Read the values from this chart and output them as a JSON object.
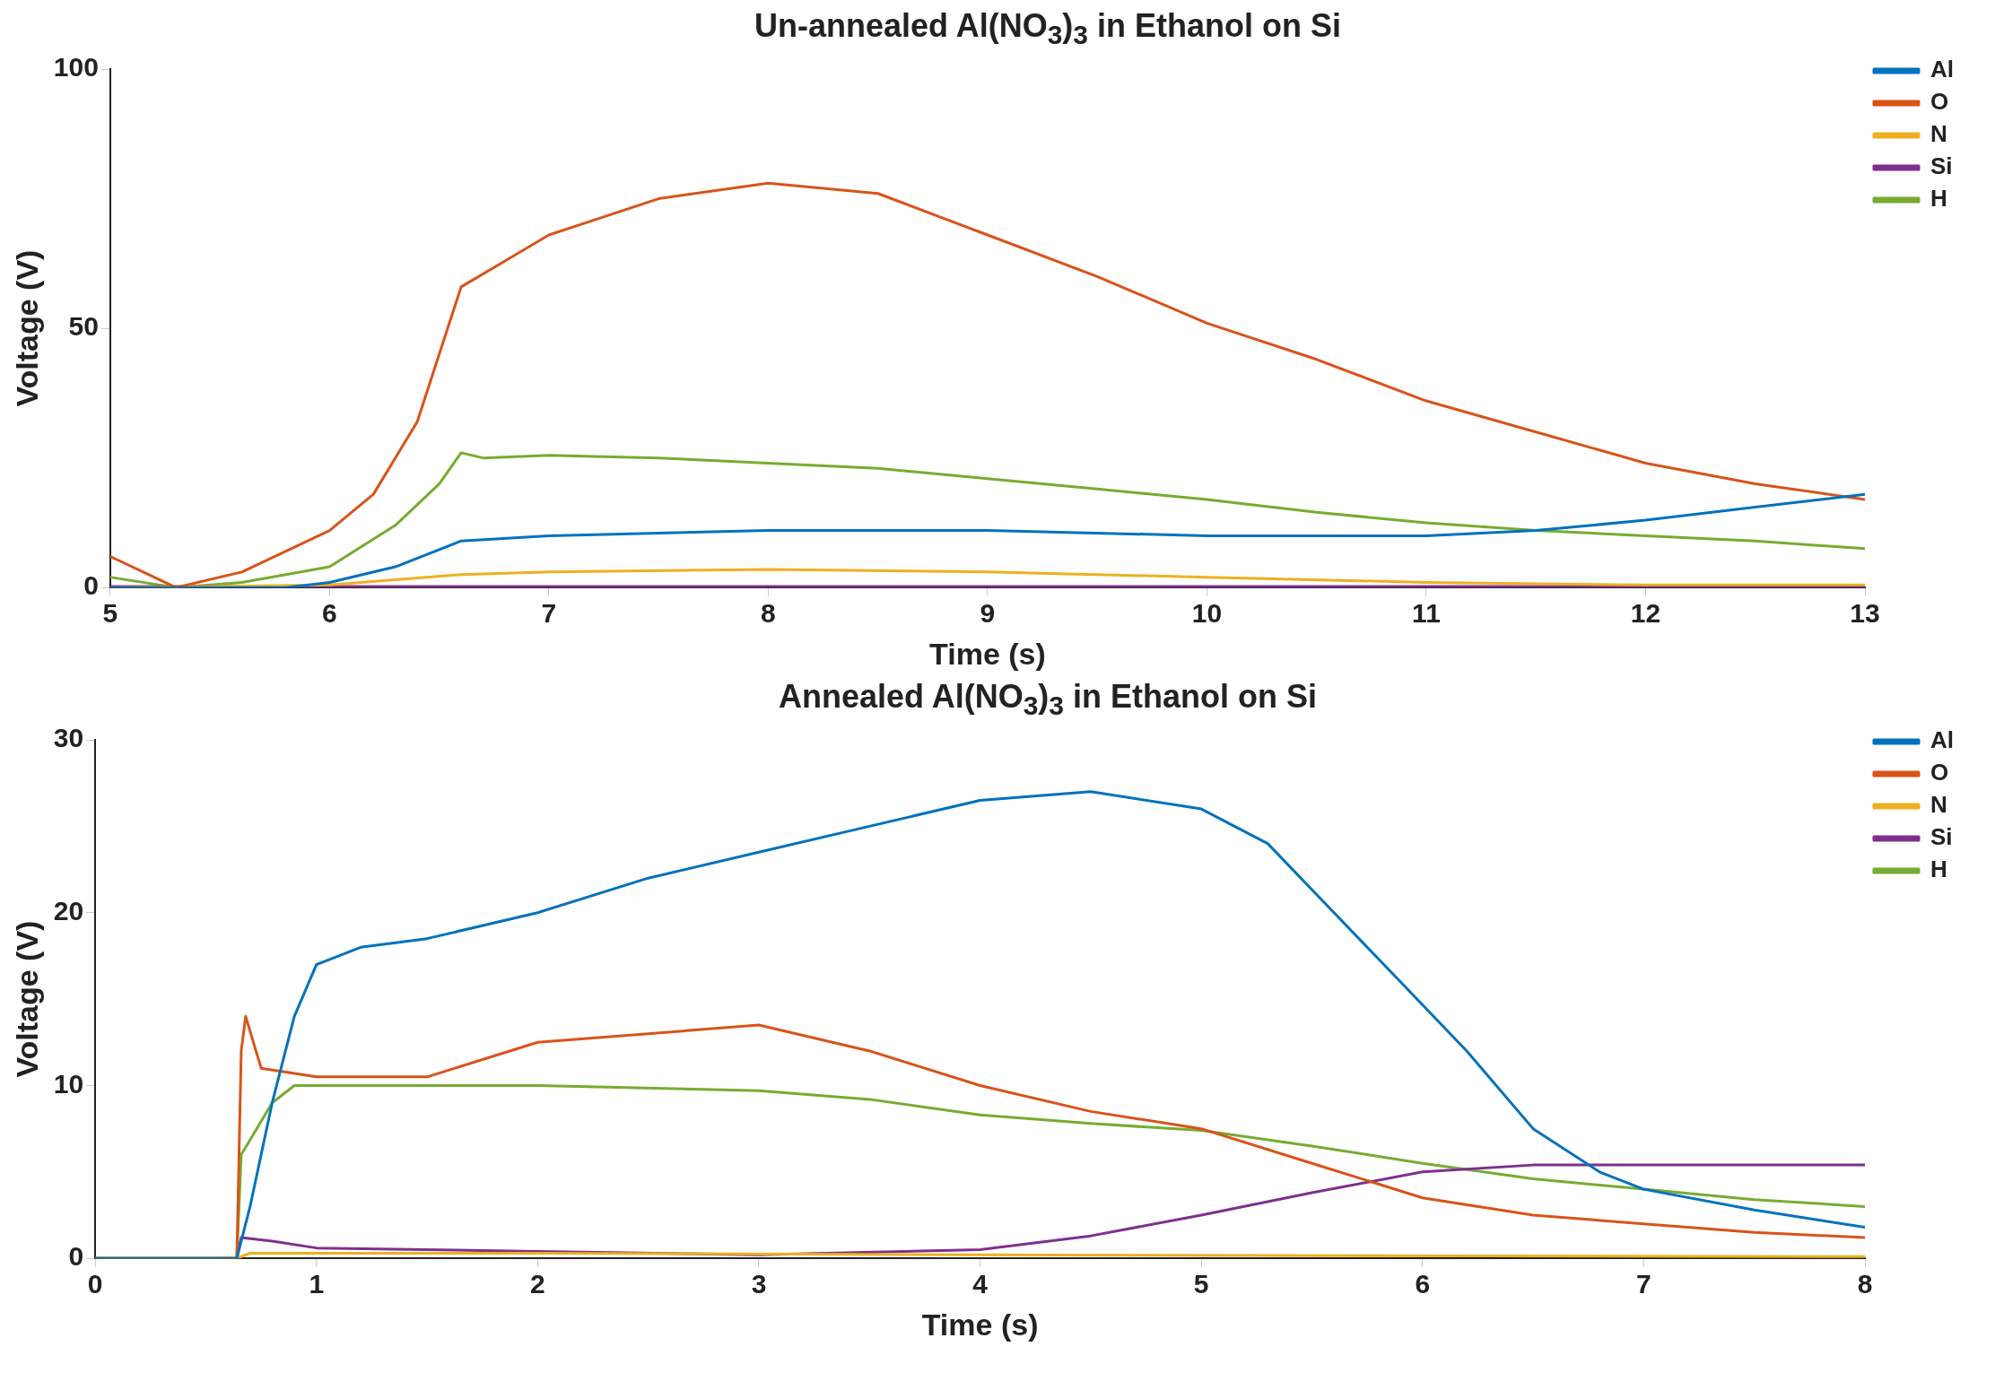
{
  "chart_data": [
    {
      "type": "line",
      "title": "Un-annealed Al(NO$_{3}$)$_{3}$ in Ethanol on Si",
      "xlabel": "Time (s)",
      "ylabel": "Voltage (V)",
      "xlim": [
        5,
        13
      ],
      "xticks": [
        5,
        6,
        7,
        8,
        9,
        10,
        11,
        12,
        13
      ],
      "ylim": [
        0,
        100
      ],
      "yticks": [
        0,
        50,
        100
      ],
      "legend": "top right",
      "series": [
        {
          "name": "Al",
          "color": "#0072bd",
          "x": [
            5,
            5.8,
            6,
            6.3,
            6.6,
            7,
            8,
            9,
            10,
            11,
            11.5,
            12,
            12.5,
            13
          ],
          "values": [
            0,
            0,
            1,
            4,
            9,
            10,
            11,
            11,
            10,
            10,
            11,
            13,
            15.5,
            18
          ]
        },
        {
          "name": "O",
          "color": "#d95319",
          "x": [
            5,
            5.3,
            5.6,
            6,
            6.2,
            6.4,
            6.5,
            6.6,
            6.8,
            7,
            7.5,
            8,
            8.5,
            9,
            9.5,
            10,
            10.5,
            11,
            11.5,
            12,
            12.5,
            13
          ],
          "values": [
            6,
            0,
            3,
            11,
            18,
            32,
            45,
            58,
            63,
            68,
            75,
            78,
            76,
            68,
            60,
            51,
            44,
            36,
            30,
            24,
            20,
            17
          ]
        },
        {
          "name": "N",
          "color": "#edb120",
          "x": [
            5,
            6,
            6.6,
            7,
            8,
            9,
            10,
            11,
            12,
            13
          ],
          "values": [
            0,
            0.5,
            2.5,
            3,
            3.5,
            3,
            2,
            1,
            0.5,
            0.5
          ]
        },
        {
          "name": "Si",
          "color": "#7e2f8e",
          "x": [
            5,
            13
          ],
          "values": [
            0.2,
            0.2
          ]
        },
        {
          "name": "H",
          "color": "#77ac30",
          "x": [
            5,
            5.3,
            5.6,
            6,
            6.3,
            6.5,
            6.6,
            6.7,
            7,
            7.5,
            8,
            8.5,
            9,
            9.5,
            10,
            10.5,
            11,
            11.5,
            12,
            12.5,
            13
          ],
          "values": [
            2,
            0,
            1,
            4,
            12,
            20,
            26,
            25,
            25.5,
            25,
            24,
            23,
            21,
            19,
            17,
            14.5,
            12.5,
            11,
            10,
            9,
            7.5
          ]
        }
      ]
    },
    {
      "type": "line",
      "title": "Annealed Al(NO$_{3}$)$_{3}$ in Ethanol on Si",
      "xlabel": "Time (s)",
      "ylabel": "Voltage (V)",
      "xlim": [
        0,
        8
      ],
      "xticks": [
        0,
        1,
        2,
        3,
        4,
        5,
        6,
        7,
        8
      ],
      "ylim": [
        0,
        30
      ],
      "yticks": [
        0,
        10,
        20,
        30
      ],
      "legend": "top right",
      "series": [
        {
          "name": "Al",
          "color": "#0072bd",
          "x": [
            0,
            0.64,
            0.7,
            0.8,
            0.9,
            1,
            1.2,
            1.5,
            2,
            2.5,
            3,
            3.5,
            4,
            4.5,
            5,
            5.3,
            5.6,
            5.9,
            6.2,
            6.5,
            6.8,
            7,
            7.5,
            8
          ],
          "values": [
            0,
            0,
            3,
            9,
            14,
            17,
            18,
            18.5,
            20,
            22,
            23.5,
            25,
            26.5,
            27,
            26,
            24,
            20,
            16,
            12,
            7.5,
            5,
            4,
            2.8,
            1.8
          ]
        },
        {
          "name": "O",
          "color": "#d95319",
          "x": [
            0,
            0.64,
            0.66,
            0.68,
            0.75,
            1,
            1.5,
            2,
            2.5,
            3,
            3.5,
            4,
            4.5,
            5,
            5.5,
            6,
            6.5,
            7,
            7.5,
            8
          ],
          "values": [
            0,
            0,
            12,
            14,
            11,
            10.5,
            10.5,
            12.5,
            13,
            13.5,
            12,
            10,
            8.5,
            7.5,
            5.5,
            3.5,
            2.5,
            2,
            1.5,
            1.2
          ]
        },
        {
          "name": "N",
          "color": "#edb120",
          "x": [
            0,
            0.64,
            0.7,
            2,
            4,
            8
          ],
          "values": [
            0,
            0,
            0.3,
            0.3,
            0.2,
            0.1
          ]
        },
        {
          "name": "Si",
          "color": "#7e2f8e",
          "x": [
            0,
            0.64,
            0.66,
            0.8,
            1,
            2,
            3,
            4,
            4.5,
            5,
            5.5,
            6,
            6.5,
            7,
            8
          ],
          "values": [
            0,
            0,
            1.2,
            1,
            0.6,
            0.4,
            0.2,
            0.5,
            1.3,
            2.5,
            3.8,
            5,
            5.4,
            5.4,
            5.4
          ]
        },
        {
          "name": "H",
          "color": "#77ac30",
          "x": [
            0,
            0.64,
            0.66,
            0.8,
            0.9,
            1,
            2,
            3,
            3.5,
            4,
            4.5,
            5,
            5.5,
            6,
            6.5,
            7,
            7.5,
            8
          ],
          "values": [
            0,
            0,
            6,
            9,
            10,
            10,
            10,
            9.7,
            9.2,
            8.3,
            7.8,
            7.4,
            6.5,
            5.5,
            4.6,
            4,
            3.4,
            3
          ]
        }
      ]
    }
  ]
}
